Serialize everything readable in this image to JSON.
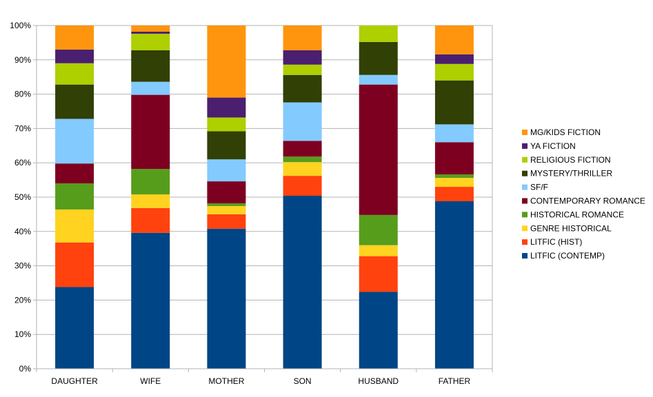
{
  "chart_data": {
    "type": "bar",
    "stacked": true,
    "percent_stacked": true,
    "categories": [
      "DAUGHTER",
      "WIFE",
      "MOTHER",
      "SON",
      "HUSBAND",
      "FATHER"
    ],
    "y_ticks": [
      "0%",
      "10%",
      "20%",
      "30%",
      "40%",
      "50%",
      "60%",
      "70%",
      "80%",
      "90%",
      "100%"
    ],
    "ylim": [
      0,
      100
    ],
    "grid": true,
    "legend_position": "right",
    "series": [
      {
        "name": "LITFIC (CONTEMP)",
        "color": "#004586",
        "values": [
          23.8,
          39.6,
          40.8,
          50.4,
          22.4,
          48.8
        ]
      },
      {
        "name": "LITFIC (HIST)",
        "color": "#ff420e",
        "values": [
          13.0,
          7.2,
          4.2,
          5.8,
          10.4,
          4.2
        ]
      },
      {
        "name": "GENRE HISTORICAL",
        "color": "#ffd320",
        "values": [
          9.6,
          4.0,
          2.4,
          4.0,
          3.2,
          2.6
        ]
      },
      {
        "name": "HISTORICAL ROMANCE",
        "color": "#579d1c",
        "values": [
          7.6,
          7.4,
          0.8,
          1.6,
          8.8,
          1.0
        ]
      },
      {
        "name": "CONTEMPORARY ROMANCE",
        "color": "#7e0021",
        "values": [
          5.8,
          21.6,
          6.4,
          4.6,
          38.0,
          9.4
        ]
      },
      {
        "name": "SF/F",
        "color": "#83caff",
        "values": [
          13.0,
          3.8,
          6.4,
          11.2,
          2.8,
          5.2
        ]
      },
      {
        "name": "MYSTERY/THRILLER",
        "color": "#314004",
        "values": [
          10.0,
          9.2,
          8.2,
          8.0,
          9.6,
          12.8
        ]
      },
      {
        "name": "RELIGIOUS FICTION",
        "color": "#aecf00",
        "values": [
          6.2,
          4.8,
          4.0,
          3.0,
          4.8,
          4.8
        ]
      },
      {
        "name": "YA FICTION",
        "color": "#4b1f6f",
        "values": [
          4.0,
          0.6,
          5.8,
          4.2,
          0.0,
          2.8
        ]
      },
      {
        "name": "MG/KIDS FICTION",
        "color": "#ff950e",
        "values": [
          7.0,
          1.8,
          21.0,
          7.2,
          0.0,
          8.4
        ]
      }
    ]
  }
}
